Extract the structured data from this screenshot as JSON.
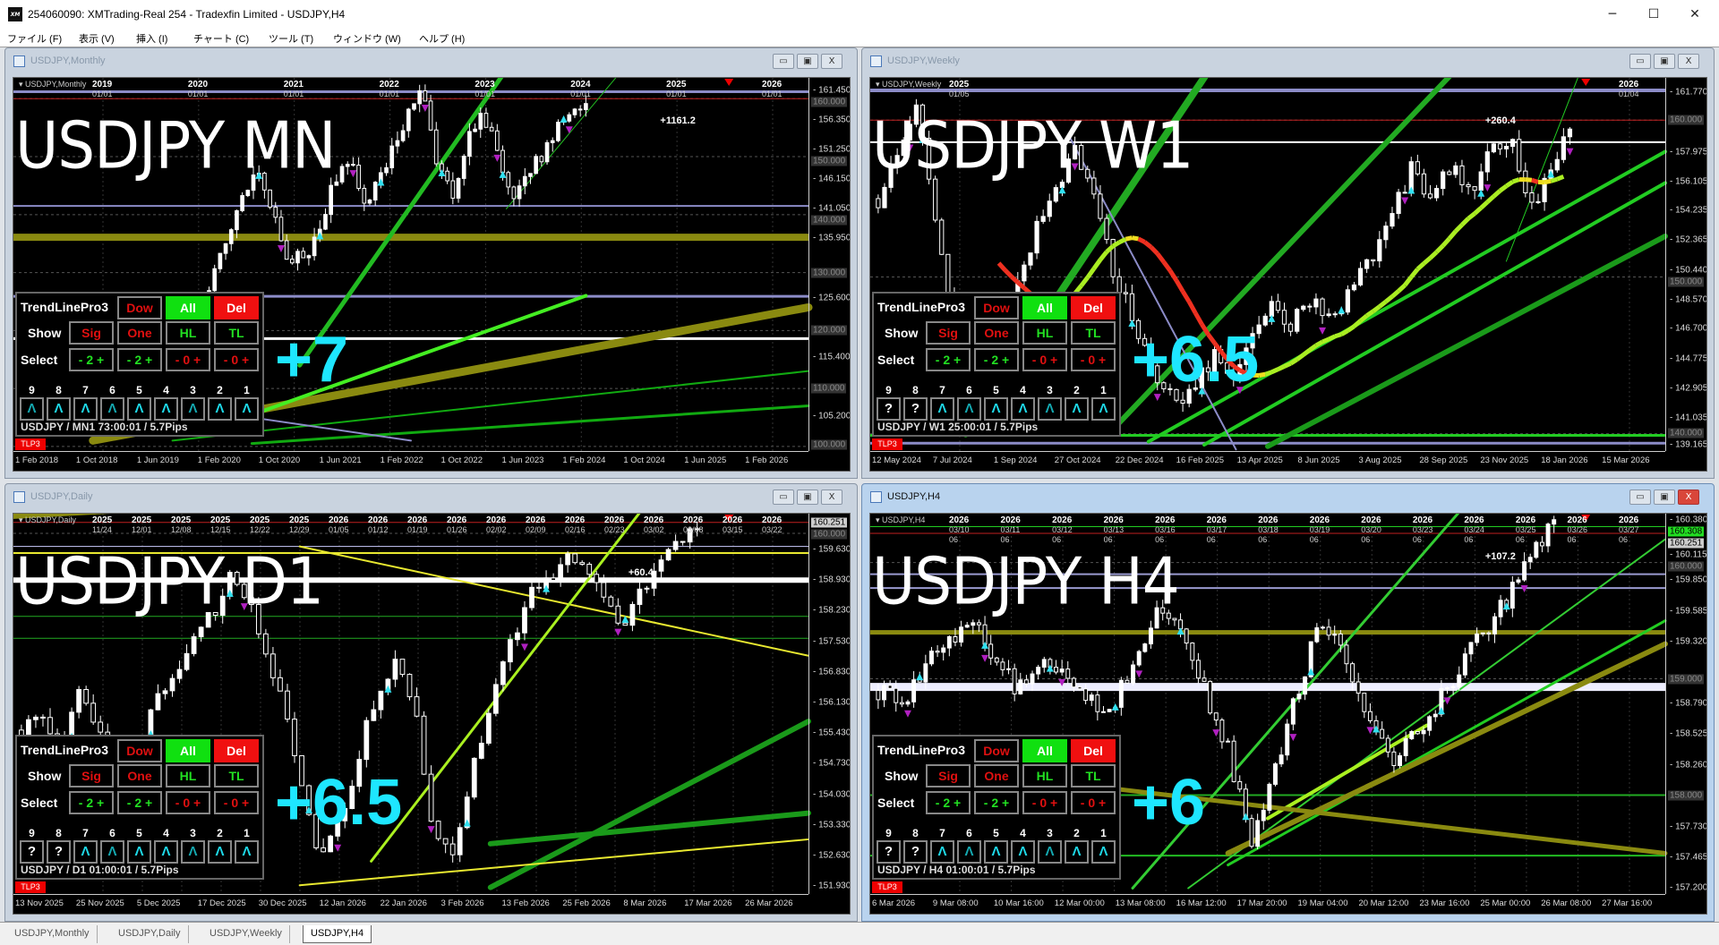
{
  "window": {
    "title": "254060090: XMTrading-Real 254 - Tradexfin Limited - USDJPY,H4",
    "icon": "XM",
    "controls": {
      "minimize": "─",
      "maximize": "☐",
      "close": "✕"
    }
  },
  "menu": [
    "ファイル (F)",
    "表示 (V)",
    "挿入 (I)",
    "チャート (C)",
    "ツール (T)",
    "ウィンドウ (W)",
    "ヘルプ (H)"
  ],
  "panel": {
    "title": "TrendLinePro3",
    "dow": "Dow",
    "all": "All",
    "del": "Del",
    "show_label": "Show",
    "show": [
      "Sig",
      "One",
      "HL",
      "TL"
    ],
    "select_label": "Select",
    "select": [
      "- 2 +",
      "- 2 +",
      "- 0 +",
      "- 0 +"
    ],
    "numbers": [
      "9",
      "8",
      "7",
      "6",
      "5",
      "4",
      "3",
      "2",
      "1"
    ],
    "badge": "TLP3"
  },
  "colors": {
    "score": "#1ee6ff",
    "bull_line": "#22cc22",
    "level_purple": "#8c8cc8",
    "level_olive": "#8a8a10",
    "current": "#c02020"
  },
  "charts": [
    {
      "window_title": "USDJPY,Monthly",
      "symbol_label": "USDJPY,Monthly",
      "big_label": "USDJPY MN",
      "score": "+7",
      "pips": "+1161.2",
      "arrows": [
        "^",
        "^",
        "^",
        "^",
        "^",
        "^",
        "^",
        "^",
        "^"
      ],
      "status": "USDJPY / MN1 73:00:01 / 5.7Pips",
      "top_labels": [
        [
          "2019",
          "01/01"
        ],
        [
          "2020",
          "01/01"
        ],
        [
          "2021",
          "01/01"
        ],
        [
          "2022",
          "01/01"
        ],
        [
          "2023",
          "01/01"
        ],
        [
          "2024",
          "01/01"
        ],
        [
          "2025",
          "01/01"
        ],
        [
          "2026",
          "01/01"
        ]
      ],
      "price_range": [
        99.2,
        163.6
      ],
      "price_ticks": [
        "161.450",
        "156.350",
        "151.250",
        "146.150",
        "141.050",
        "135.950",
        "125.600",
        "115.400",
        "105.200"
      ],
      "price_boxes": [
        "160.000",
        "150.000",
        "140.000",
        "130.000",
        "120.000",
        "110.000",
        "100.000"
      ],
      "time_ticks": [
        "1 Feb 2018",
        "1 Oct 2018",
        "1 Jun 2019",
        "1 Feb 2020",
        "1 Oct 2020",
        "1 Jun 2021",
        "1 Feb 2022",
        "1 Oct 2022",
        "1 Jun 2023",
        "1 Feb 2024",
        "1 Oct 2024",
        "1 Jun 2025",
        "1 Feb 2026"
      ],
      "closes": [
        111,
        109,
        113,
        108,
        110,
        107,
        104,
        105,
        110,
        114,
        115,
        122,
        131,
        137,
        145,
        148,
        139,
        131,
        133,
        137,
        145,
        150,
        141,
        146,
        151,
        158,
        161,
        149,
        143,
        153,
        157,
        151,
        143,
        146,
        150,
        155,
        157,
        160
      ],
      "levels": [
        {
          "price": 161.2,
          "color": "#8c8cc8",
          "width": 3
        },
        {
          "price": 160.0,
          "color": "#c02020",
          "width": 1
        },
        {
          "price": 141.5,
          "color": "#8c8cc8",
          "width": 2
        },
        {
          "price": 136.1,
          "color": "#8a8a10",
          "width": 8
        },
        {
          "price": 125.9,
          "color": "#8c8cc8",
          "width": 3
        },
        {
          "price": 118.6,
          "color": "#ffffff",
          "width": 3
        }
      ]
    },
    {
      "window_title": "USDJPY,Weekly",
      "symbol_label": "USDJPY,Weekly",
      "big_label": "USDJPY W1",
      "score": "+6.5",
      "pips": "+260.4",
      "arrows": [
        "?",
        "?",
        "^",
        "^",
        "^",
        "^",
        "^",
        "^",
        "^"
      ],
      "status": "USDJPY / W1 25:00:01 / 5.7Pips",
      "top_labels": [
        [
          "2025",
          "01/05"
        ],
        [
          "2026",
          "01/04"
        ]
      ],
      "price_range": [
        138.9,
        162.7
      ],
      "price_ticks": [
        "161.770",
        "157.975",
        "156.105",
        "154.235",
        "152.365",
        "150.440",
        "148.570",
        "146.700",
        "144.775",
        "142.905",
        "141.035",
        "139.165"
      ],
      "price_boxes": [
        "160.000",
        "150.000",
        "140.000"
      ],
      "time_ticks": [
        "12 May 2024",
        "7 Jul 2024",
        "1 Sep 2024",
        "27 Oct 2024",
        "22 Dec 2024",
        "16 Feb 2025",
        "13 Apr 2025",
        "8 Jun 2025",
        "3 Aug 2025",
        "28 Sep 2025",
        "23 Nov 2025",
        "18 Jan 2026",
        "15 Mar 2026"
      ],
      "closes": [
        155,
        158,
        161,
        153,
        146,
        142,
        144,
        149,
        153,
        156,
        158,
        155,
        150,
        147,
        144,
        142,
        143,
        145,
        144,
        147,
        148,
        147,
        149,
        147,
        150,
        151,
        154,
        157,
        155,
        157,
        155,
        158,
        159,
        154,
        157,
        160
      ],
      "levels": [
        {
          "price": 161.9,
          "color": "#8c8cc8",
          "width": 4
        },
        {
          "price": 160.0,
          "color": "#c02020",
          "width": 1
        },
        {
          "price": 158.6,
          "color": "#ffffff",
          "width": 2
        },
        {
          "price": 139.4,
          "color": "#8c8cc8",
          "width": 3
        },
        {
          "price": 139.9,
          "color": "#22cc22",
          "width": 3
        }
      ]
    },
    {
      "window_title": "USDJPY,Daily",
      "symbol_label": "USDJPY,Daily",
      "big_label": "USDJPY D1",
      "score": "+6.5",
      "pips": "+60.4",
      "arrows": [
        "?",
        "?",
        "^",
        "^",
        "^",
        "^",
        "^",
        "^",
        "^"
      ],
      "status": "USDJPY / D1 01:00:01 / 5.7Pips",
      "top_labels": [
        [
          "2025",
          "11/24"
        ],
        [
          "2025",
          "12/01"
        ],
        [
          "2025",
          "12/08"
        ],
        [
          "2025",
          "12/15"
        ],
        [
          "2025",
          "12/22"
        ],
        [
          "2025",
          "12/29"
        ],
        [
          "2026",
          "01/05"
        ],
        [
          "2026",
          "01/12"
        ],
        [
          "2026",
          "01/19"
        ],
        [
          "2026",
          "01/26"
        ],
        [
          "2026",
          "02/02"
        ],
        [
          "2026",
          "02/09"
        ],
        [
          "2026",
          "02/16"
        ],
        [
          "2026",
          "02/23"
        ],
        [
          "2026",
          "03/02"
        ],
        [
          "2026",
          "03/08"
        ],
        [
          "2026",
          "03/15"
        ],
        [
          "2026",
          "03/22"
        ]
      ],
      "price_range": [
        151.75,
        160.45
      ],
      "price_ticks": [
        "159.630",
        "158.930",
        "158.230",
        "157.530",
        "156.830",
        "156.130",
        "155.430",
        "154.730",
        "154.030",
        "153.330",
        "152.630",
        "151.930"
      ],
      "price_boxes": [
        "160.000"
      ],
      "price_current": "160.251",
      "time_ticks": [
        "13 Nov 2025",
        "25 Nov 2025",
        "5 Dec 2025",
        "17 Dec 2025",
        "30 Dec 2025",
        "12 Jan 2026",
        "22 Jan 2026",
        "3 Feb 2026",
        "13 Feb 2026",
        "25 Feb 2026",
        "8 Mar 2026",
        "17 Mar 2026",
        "26 Mar 2026"
      ],
      "closes": [
        155.5,
        156,
        155,
        156.5,
        155.5,
        154.5,
        155,
        156,
        156.5,
        157.5,
        158,
        159,
        158.5,
        157.2,
        156,
        154.2,
        152.5,
        153.5,
        155,
        156.5,
        157,
        156,
        153,
        152.8,
        154.5,
        156,
        157.5,
        158.5,
        159,
        159.3,
        159.5,
        158.5,
        157.8,
        158.6,
        159.4,
        159.8,
        160.2
      ],
      "levels": [
        {
          "price": 160.251,
          "color": "#c02020",
          "width": 1
        },
        {
          "price": 159.7,
          "color": "#ccccff",
          "width": 1
        },
        {
          "price": 159.55,
          "color": "#e8e830",
          "width": 2
        },
        {
          "price": 158.93,
          "color": "#ffffff",
          "width": 6
        },
        {
          "price": 158.1,
          "color": "#22aa22",
          "width": 1
        },
        {
          "price": 157.6,
          "color": "#22aa22",
          "width": 1
        }
      ]
    },
    {
      "window_title": "USDJPY,H4",
      "symbol_label": "USDJPY,H4",
      "big_label": "USDJPY H4",
      "score": "+6",
      "pips": "+107.2",
      "arrows": [
        "?",
        "?",
        "^",
        "^",
        "^",
        "^",
        "^",
        "^",
        "^"
      ],
      "status": "USDJPY / H4 01:00:01 / 5.7Pips",
      "active": true,
      "top_labels": [
        [
          "2026",
          "03/10"
        ],
        [
          "2026",
          "03/11"
        ],
        [
          "2026",
          "03/12"
        ],
        [
          "2026",
          "03/13"
        ],
        [
          "2026",
          "03/16"
        ],
        [
          "2026",
          "03/17"
        ],
        [
          "2026",
          "03/18"
        ],
        [
          "2026",
          "03/19"
        ],
        [
          "2026",
          "03/20"
        ],
        [
          "2026",
          "03/23"
        ],
        [
          "2026",
          "03/24"
        ],
        [
          "2026",
          "03/25"
        ],
        [
          "2026",
          "03/26"
        ],
        [
          "2026",
          "03/27"
        ]
      ],
      "top_sub": "06",
      "price_range": [
        157.15,
        160.42
      ],
      "price_ticks": [
        "160.380",
        "160.115",
        "159.850",
        "159.585",
        "159.320",
        "158.790",
        "158.525",
        "158.260",
        "157.730",
        "157.465",
        "157.200"
      ],
      "price_boxes": [
        "160.000",
        "159.000",
        "158.000"
      ],
      "price_current": "160.251",
      "price_bid": "160.308",
      "time_ticks": [
        "6 Mar 2026",
        "9 Mar 08:00",
        "10 Mar 16:00",
        "12 Mar 00:00",
        "13 Mar 08:00",
        "16 Mar 12:00",
        "17 Mar 20:00",
        "19 Mar 04:00",
        "20 Mar 12:00",
        "23 Mar 16:00",
        "25 Mar 00:00",
        "26 Mar 08:00",
        "27 Mar 16:00"
      ],
      "closes": [
        158.9,
        158.8,
        159.1,
        159.3,
        159.5,
        159.2,
        158.9,
        159.1,
        159.0,
        158.8,
        158.7,
        159.2,
        159.6,
        159.4,
        158.9,
        158.4,
        157.6,
        158.2,
        158.9,
        159.5,
        159.2,
        158.6,
        158.3,
        158.5,
        158.8,
        159.1,
        159.4,
        159.7,
        160.1,
        160.3
      ],
      "levels": [
        {
          "price": 160.308,
          "color": "#22cc22",
          "width": 1
        },
        {
          "price": 160.251,
          "color": "#c02020",
          "width": 1
        },
        {
          "price": 159.9,
          "color": "#9a9ad0",
          "width": 2
        },
        {
          "price": 159.78,
          "color": "#9a9ad0",
          "width": 2
        },
        {
          "price": 159.4,
          "color": "#8a8a10",
          "width": 5
        },
        {
          "price": 158.93,
          "color": "#eeeeff",
          "width": 9
        },
        {
          "price": 158.0,
          "color": "#22aa22",
          "width": 2
        },
        {
          "price": 157.48,
          "color": "#22bb22",
          "width": 2
        }
      ]
    }
  ],
  "tabs": [
    "USDJPY,Monthly",
    "USDJPY,Daily",
    "USDJPY,Weekly",
    "USDJPY,H4"
  ],
  "active_tab": 3
}
